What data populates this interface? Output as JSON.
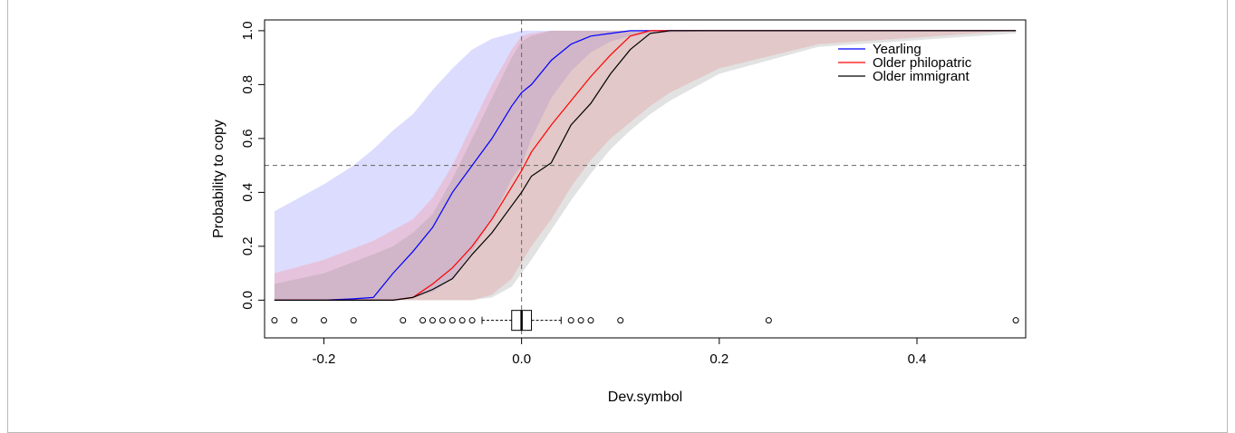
{
  "chart_data": {
    "type": "line",
    "title": "",
    "xlabel": "Dev.symbol",
    "ylabel": "Probability to copy",
    "xlim": [
      -0.26,
      0.51
    ],
    "ylim": [
      -0.14,
      1.04
    ],
    "x_ticks": [
      -0.2,
      0.0,
      0.2,
      0.4
    ],
    "x_tick_labels": [
      "-0.2",
      "0.0",
      "0.2",
      "0.4"
    ],
    "y_ticks": [
      0.0,
      0.2,
      0.4,
      0.6,
      0.8,
      1.0
    ],
    "y_tick_labels": [
      "0.0",
      "0.2",
      "0.4",
      "0.6",
      "0.8",
      "1.0"
    ],
    "reference_lines": {
      "vertical_x": 0.0,
      "horizontal_y": 0.5
    },
    "grid": false,
    "legend": {
      "position": "top-right",
      "entries": [
        "Yearling",
        "Older philopatric",
        "Older immigrant"
      ]
    },
    "series": [
      {
        "name": "Yearling",
        "color": "#0000ff",
        "band_color": "rgba(128,128,255,0.28)",
        "x": [
          -0.25,
          -0.2,
          -0.17,
          -0.15,
          -0.13,
          -0.11,
          -0.09,
          -0.07,
          -0.05,
          -0.03,
          -0.01,
          0.0,
          0.01,
          0.03,
          0.05,
          0.07,
          0.09,
          0.11,
          0.13,
          0.2,
          0.3,
          0.5
        ],
        "y": [
          0.0,
          0.0,
          0.005,
          0.01,
          0.1,
          0.18,
          0.27,
          0.4,
          0.5,
          0.6,
          0.72,
          0.77,
          0.8,
          0.89,
          0.95,
          0.98,
          0.99,
          1.0,
          1.0,
          1.0,
          1.0,
          1.0
        ],
        "lower": [
          0.0,
          0.0,
          0.0,
          0.0,
          0.0,
          0.01,
          0.03,
          0.08,
          0.18,
          0.3,
          0.45,
          0.5,
          0.6,
          0.75,
          0.85,
          0.92,
          0.96,
          0.98,
          0.99,
          1.0,
          1.0,
          1.0
        ],
        "upper": [
          0.33,
          0.43,
          0.5,
          0.56,
          0.63,
          0.69,
          0.78,
          0.86,
          0.93,
          0.97,
          0.99,
          1.0,
          1.0,
          1.0,
          1.0,
          1.0,
          1.0,
          1.0,
          1.0,
          1.0,
          1.0,
          1.0
        ]
      },
      {
        "name": "Older philopatric",
        "color": "#ff0000",
        "band_color": "rgba(255,140,140,0.30)",
        "x": [
          -0.25,
          -0.2,
          -0.15,
          -0.13,
          -0.11,
          -0.09,
          -0.07,
          -0.05,
          -0.03,
          -0.01,
          0.0,
          0.01,
          0.03,
          0.05,
          0.07,
          0.09,
          0.11,
          0.13,
          0.15,
          0.2,
          0.3,
          0.5
        ],
        "y": [
          0.0,
          0.0,
          0.0,
          0.0,
          0.01,
          0.06,
          0.12,
          0.2,
          0.3,
          0.42,
          0.48,
          0.55,
          0.65,
          0.74,
          0.83,
          0.91,
          0.98,
          1.0,
          1.0,
          1.0,
          1.0,
          1.0
        ],
        "lower": [
          0.0,
          0.0,
          0.0,
          0.0,
          0.0,
          0.0,
          0.0,
          0.0,
          0.02,
          0.08,
          0.14,
          0.2,
          0.3,
          0.42,
          0.52,
          0.6,
          0.66,
          0.72,
          0.77,
          0.86,
          0.95,
          1.0
        ],
        "upper": [
          0.1,
          0.15,
          0.22,
          0.26,
          0.3,
          0.38,
          0.5,
          0.65,
          0.8,
          0.93,
          0.98,
          0.99,
          1.0,
          1.0,
          1.0,
          1.0,
          1.0,
          1.0,
          1.0,
          1.0,
          1.0,
          1.0
        ]
      },
      {
        "name": "Older immigrant",
        "color": "#000000",
        "band_color": "rgba(150,150,150,0.28)",
        "x": [
          -0.25,
          -0.2,
          -0.15,
          -0.13,
          -0.11,
          -0.09,
          -0.07,
          -0.05,
          -0.03,
          -0.01,
          0.0,
          0.01,
          0.03,
          0.05,
          0.07,
          0.09,
          0.11,
          0.13,
          0.15,
          0.2,
          0.3,
          0.5
        ],
        "y": [
          0.0,
          0.0,
          0.0,
          0.0,
          0.01,
          0.04,
          0.08,
          0.17,
          0.25,
          0.35,
          0.4,
          0.46,
          0.51,
          0.65,
          0.73,
          0.84,
          0.93,
          0.99,
          1.0,
          1.0,
          1.0,
          1.0
        ],
        "lower": [
          0.0,
          0.0,
          0.0,
          0.0,
          0.0,
          0.0,
          0.0,
          0.0,
          0.01,
          0.05,
          0.1,
          0.15,
          0.26,
          0.37,
          0.47,
          0.56,
          0.63,
          0.69,
          0.74,
          0.84,
          0.94,
          0.99
        ],
        "upper": [
          0.06,
          0.1,
          0.17,
          0.2,
          0.25,
          0.32,
          0.45,
          0.6,
          0.75,
          0.9,
          0.96,
          0.98,
          1.0,
          1.0,
          1.0,
          1.0,
          1.0,
          1.0,
          1.0,
          1.0,
          1.0,
          1.0
        ]
      }
    ],
    "boxplot": {
      "y_level": -0.075,
      "q1": -0.01,
      "median": 0.0,
      "q3": 0.01,
      "whisker_low": -0.04,
      "whisker_high": 0.04,
      "outliers": [
        -0.25,
        -0.23,
        -0.2,
        -0.17,
        -0.12,
        -0.1,
        -0.09,
        -0.08,
        -0.07,
        -0.06,
        -0.05,
        0.05,
        0.06,
        0.07,
        0.1,
        0.25,
        0.5
      ]
    }
  }
}
